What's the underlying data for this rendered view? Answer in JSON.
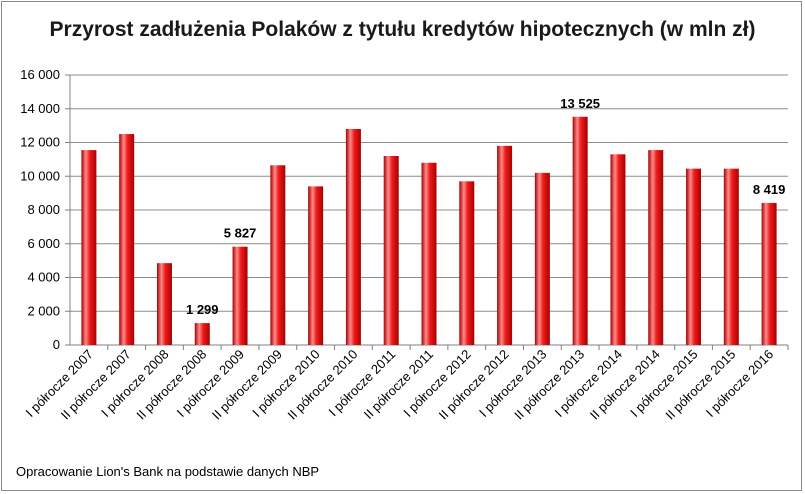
{
  "chart_data": {
    "type": "bar",
    "title": "Przyrost zadłużenia Polaków z tytułu kredytów hipotecznych (w mln zł)",
    "categories": [
      "I półrocze 2007",
      "II półrocze 2007",
      "I półrocze 2008",
      "II półrocze 2008",
      "I półrocze 2009",
      "II półrocze 2009",
      "I półrocze 2010",
      "II półrocze 2010",
      "I półrocze 2011",
      "II półrocze 2011",
      "I półrocze 2012",
      "II półrocze 2012",
      "I półrocze 2013",
      "II półrocze 2013",
      "I półrocze 2014",
      "II półrocze 2014",
      "I półrocze 2015",
      "II półrocze 2015",
      "I półrocze 2016"
    ],
    "values": [
      11550,
      12500,
      4850,
      1299,
      5827,
      10650,
      9400,
      12800,
      11200,
      10800,
      9700,
      11800,
      10200,
      13525,
      11300,
      11550,
      10450,
      10450,
      8419
    ],
    "data_labels": [
      {
        "index": 3,
        "text": "1 299"
      },
      {
        "index": 4,
        "text": "5 827"
      },
      {
        "index": 13,
        "text": "13 525"
      },
      {
        "index": 18,
        "text": "8 419"
      }
    ],
    "yticks": [
      "0",
      "2 000",
      "4 000",
      "6 000",
      "8 000",
      "10 000",
      "12 000",
      "14 000",
      "16 000"
    ],
    "ylim": [
      0,
      16000
    ],
    "ystep": 2000,
    "grid": true,
    "xlabel": "",
    "ylabel": "",
    "bar_color": "#ee1c1c",
    "bar_highlight": "#ff8a8a",
    "bar_shadow": "#a80000"
  },
  "source": "Opracowanie Lion's Bank na podstawie danych NBP"
}
